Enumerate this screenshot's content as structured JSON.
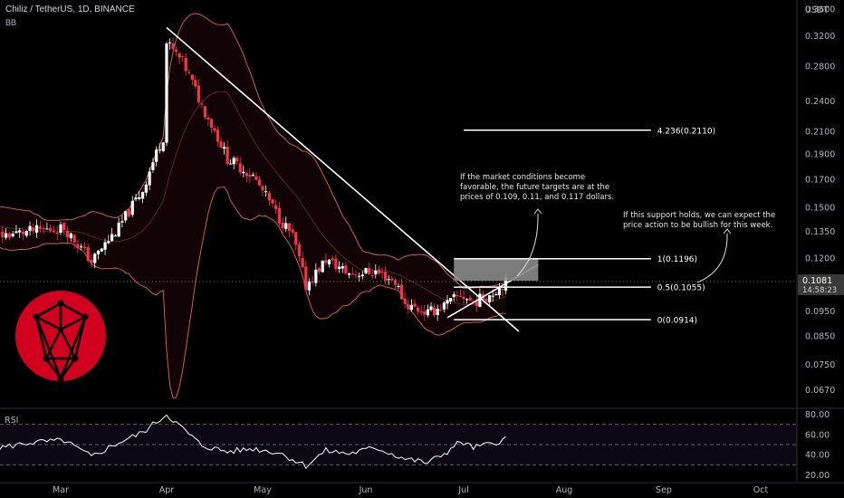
{
  "header": {
    "symbol_line": "Chiliz / TetherUS, 1D, BINANCE",
    "indicator": "BB"
  },
  "colors": {
    "background": "#000000",
    "bull_candle": "#ffffff",
    "bear_candle": "#f23645",
    "band": "#e0606b",
    "zone_fill": "#8a8a8a",
    "logo_red": "#d1001f",
    "price_tag": "#3a3a3a"
  },
  "chart_data": {
    "type": "candlestick",
    "y_scale": "log",
    "y_unit_label": "USDT",
    "ylim": [
      0.062,
      0.375
    ],
    "y_ticks": [
      "0.3600",
      "0.3200",
      "0.2800",
      "0.2400",
      "0.2100",
      "0.1900",
      "0.1700",
      "0.1500",
      "0.1350",
      "0.1200",
      "0.0950",
      "0.0850",
      "0.0750",
      "0.0670"
    ],
    "x_ticks": [
      "Mar",
      "Apr",
      "May",
      "Jun",
      "Jul",
      "Aug",
      "Sep",
      "Oct"
    ],
    "last_price": "0.1081",
    "countdown": "14:58:23",
    "price_anchors": [
      [
        "2023-02-01",
        0.145
      ],
      [
        "2023-02-10",
        0.132
      ],
      [
        "2023-02-20",
        0.135
      ],
      [
        "2023-03-02",
        0.137
      ],
      [
        "2023-03-10",
        0.118
      ],
      [
        "2023-03-18",
        0.137
      ],
      [
        "2023-03-25",
        0.162
      ],
      [
        "2023-03-31",
        0.205
      ],
      [
        "2023-04-01",
        0.31
      ],
      [
        "2023-04-06",
        0.285
      ],
      [
        "2023-04-12",
        0.235
      ],
      [
        "2023-04-20",
        0.186
      ],
      [
        "2023-04-28",
        0.172
      ],
      [
        "2023-05-06",
        0.143
      ],
      [
        "2023-05-10",
        0.132
      ],
      [
        "2023-05-14",
        0.106
      ],
      [
        "2023-05-20",
        0.119
      ],
      [
        "2023-05-27",
        0.112
      ],
      [
        "2023-06-04",
        0.113
      ],
      [
        "2023-06-10",
        0.108
      ],
      [
        "2023-06-13",
        0.098
      ],
      [
        "2023-06-20",
        0.094
      ],
      [
        "2023-06-26",
        0.098
      ],
      [
        "2023-06-30",
        0.102
      ],
      [
        "2023-07-04",
        0.0985
      ],
      [
        "2023-07-10",
        0.103
      ],
      [
        "2023-07-14",
        0.1081
      ]
    ],
    "rsi": {
      "label": "RSI",
      "ticks": [
        "80.00",
        "60.00",
        "40.00",
        "20.00"
      ],
      "levels": [
        70,
        50,
        30
      ],
      "anchors": [
        [
          "2023-02-01",
          58
        ],
        [
          "2023-02-10",
          46
        ],
        [
          "2023-02-20",
          52
        ],
        [
          "2023-03-02",
          54
        ],
        [
          "2023-03-10",
          38
        ],
        [
          "2023-03-18",
          52
        ],
        [
          "2023-03-25",
          62
        ],
        [
          "2023-04-01",
          80
        ],
        [
          "2023-04-06",
          66
        ],
        [
          "2023-04-12",
          49
        ],
        [
          "2023-04-20",
          43
        ],
        [
          "2023-04-28",
          46
        ],
        [
          "2023-05-06",
          42
        ],
        [
          "2023-05-14",
          29
        ],
        [
          "2023-05-20",
          44
        ],
        [
          "2023-05-27",
          41
        ],
        [
          "2023-06-04",
          47
        ],
        [
          "2023-06-13",
          36
        ],
        [
          "2023-06-20",
          32
        ],
        [
          "2023-06-26",
          43
        ],
        [
          "2023-06-30",
          53
        ],
        [
          "2023-07-04",
          47
        ],
        [
          "2023-07-10",
          51
        ],
        [
          "2023-07-14",
          56
        ]
      ]
    },
    "annotations": {
      "fib_levels": [
        {
          "label": "4.236(0.2110)",
          "price": 0.211
        },
        {
          "label": "1(0.1196)",
          "price": 0.1196
        },
        {
          "label": "0.5(0.1055)",
          "price": 0.1055
        },
        {
          "label": "0(0.0914)",
          "price": 0.0914
        }
      ],
      "note_left": [
        "If the market conditions become",
        "favorable, the future targets are at the",
        "prices of 0.109, 0.11, and 0.117 dollars."
      ],
      "note_right": [
        "If this support holds, we can expect the",
        "price action to be bullish for this week."
      ]
    }
  }
}
